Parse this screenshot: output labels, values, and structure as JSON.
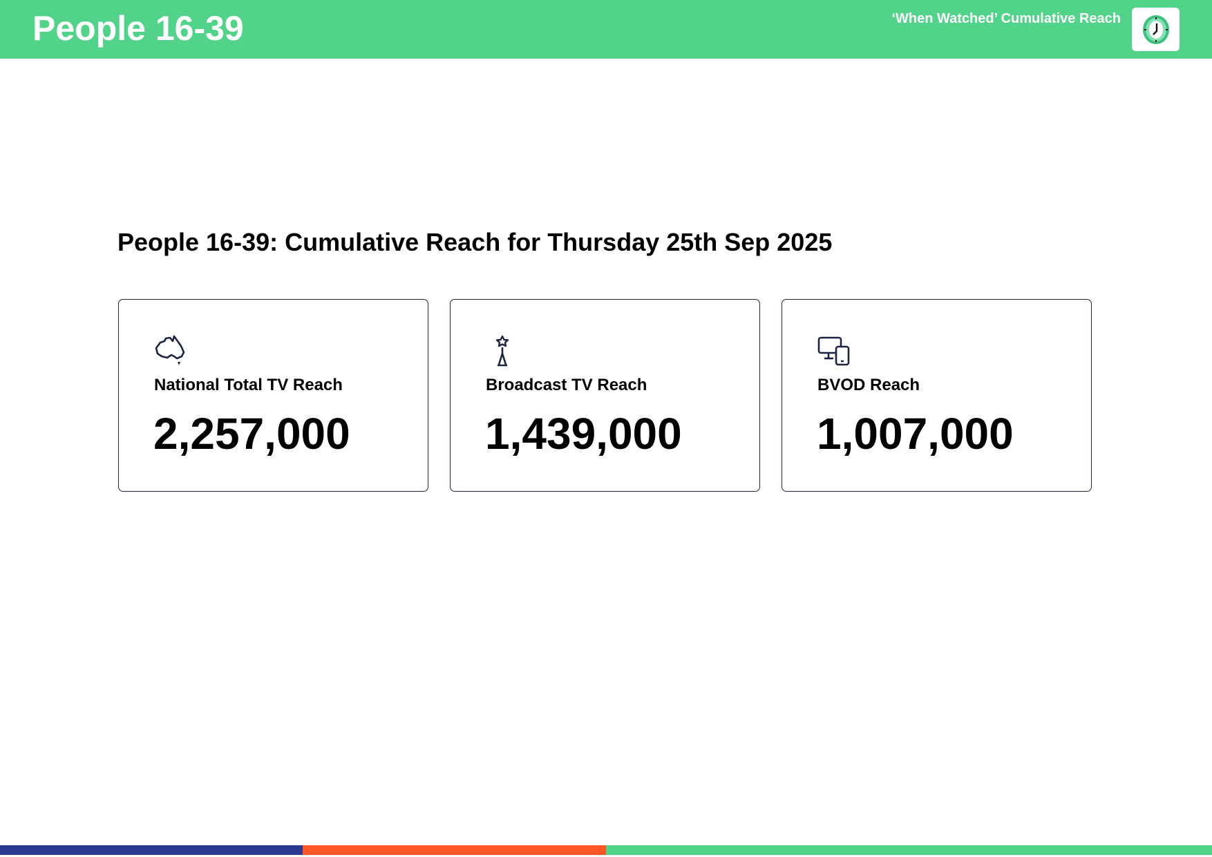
{
  "header": {
    "title": "People 16-39",
    "subtitle": "‘When Watched’ Cumulative Reach",
    "logo_icon": "clock-icon"
  },
  "main": {
    "heading": "People 16-39: Cumulative Reach for Thursday 25th Sep 2025",
    "cards": [
      {
        "icon": "australia-map-icon",
        "label": "National Total TV Reach",
        "value": "2,257,000"
      },
      {
        "icon": "broadcast-tower-icon",
        "label": "Broadcast TV Reach",
        "value": "1,439,000"
      },
      {
        "icon": "devices-icon",
        "label": "BVOD Reach",
        "value": "1,007,000"
      }
    ]
  },
  "colors": {
    "green": "#52D38A",
    "navy": "#2B3990",
    "orange": "#FF5627",
    "card_border": "#1C2340"
  }
}
